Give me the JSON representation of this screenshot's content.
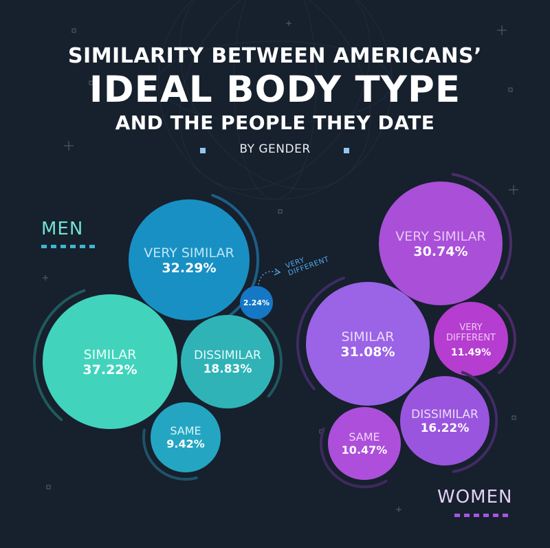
{
  "title": {
    "line1": "SIMILARITY BETWEEN AMERICANS’",
    "line2": "IDEAL BODY TYPE",
    "line3": "AND THE PEOPLE THEY DATE"
  },
  "subtitle": "BY GENDER",
  "colors": {
    "background": "#17202d",
    "men_very_similar": "#1890c4",
    "men_similar": "#42d3bd",
    "men_dissimilar": "#30b3b6",
    "men_same": "#24a6c2",
    "men_very_different": "#1478c6",
    "women_very_similar": "#a94fd8",
    "women_similar": "#9b63e6",
    "women_very_different": "#b53dcf",
    "women_dissimilar": "#9a55de",
    "women_same": "#ad4fdb"
  },
  "chart_data": [
    {
      "type": "bubble",
      "group": "MEN",
      "categories": [
        "VERY SIMILAR",
        "SIMILAR",
        "DISSIMILAR",
        "SAME",
        "VERY DIFFERENT"
      ],
      "values": [
        32.29,
        37.22,
        18.83,
        9.42,
        2.24
      ],
      "value_labels": [
        "32.29%",
        "37.22%",
        "18.83%",
        "9.42%",
        "2.24%"
      ],
      "annotations": [
        "VERY DIFFERENT"
      ]
    },
    {
      "type": "bubble",
      "group": "WOMEN",
      "categories": [
        "VERY SIMILAR",
        "SIMILAR",
        "VERY DIFFERENT",
        "DISSIMILAR",
        "SAME"
      ],
      "values": [
        30.74,
        31.08,
        11.49,
        16.22,
        10.47
      ],
      "value_labels": [
        "30.74%",
        "31.08%",
        "11.49%",
        "16.22%",
        "10.47%"
      ]
    }
  ]
}
